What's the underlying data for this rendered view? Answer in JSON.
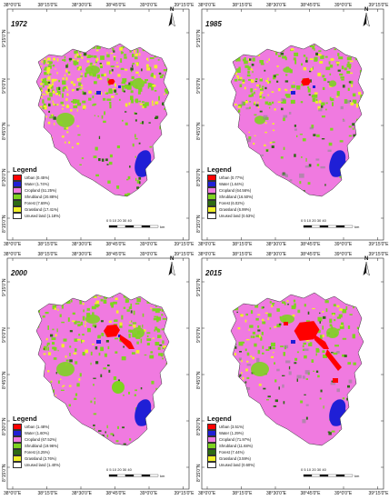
{
  "figure": {
    "top_ticks": [
      "38°0'0\"E",
      "38°15'0\"E",
      "38°30'0\"E",
      "38°45'0\"E",
      "39°0'0\"E",
      "39°15'0\"E"
    ],
    "bottom_ticks": [
      "38°0'0\"E",
      "38°15'0\"E",
      "38°30'0\"E",
      "38°45'0\"E",
      "39°0'0\"E",
      "39°15'0\"E"
    ],
    "left_ticks": [
      "9°15'0\"N",
      "9°0'0\"N",
      "8°45'0\"N",
      "8°30'0\"N",
      "8°15'0\"N"
    ],
    "north_label": "N",
    "legend_title": "Legend",
    "scale": {
      "ticks": [
        "0",
        "5",
        "10",
        "20",
        "30",
        "40"
      ],
      "unit": "km"
    }
  },
  "panels": [
    {
      "year": "1972",
      "legend": [
        {
          "label": "Urban (0.45%)",
          "color": "#ff0000"
        },
        {
          "label": "Water (1.74%)",
          "color": "#1f1fd6"
        },
        {
          "label": "Cropland (51.25%)",
          "color": "#f07ae0"
        },
        {
          "label": "Shrubland (20.88%)",
          "color": "#7ed321"
        },
        {
          "label": "Forest (7.69%)",
          "color": "#2f6b14"
        },
        {
          "label": "Grassland (17.41%)",
          "color": "#f0f028"
        },
        {
          "label": "Unused land (1.18%)",
          "color": "#ffffff"
        }
      ]
    },
    {
      "year": "1985",
      "legend": [
        {
          "label": "Urban (0.77%)",
          "color": "#ff0000"
        },
        {
          "label": "Water (1.64%)",
          "color": "#1f1fd6"
        },
        {
          "label": "Cropland (64.56%)",
          "color": "#f07ae0"
        },
        {
          "label": "Shrubland (16.50%)",
          "color": "#7ed321"
        },
        {
          "label": "Forest (6.02%)",
          "color": "#2f6b14"
        },
        {
          "label": "Grassland (6.99%)",
          "color": "#f0f028"
        },
        {
          "label": "Unused land (0.53%)",
          "color": "#ffffff"
        }
      ]
    },
    {
      "year": "2000",
      "legend": [
        {
          "label": "Urban (1.48%)",
          "color": "#ff0000"
        },
        {
          "label": "Water (1.60%)",
          "color": "#1f1fd6"
        },
        {
          "label": "Cropland (67.52%)",
          "color": "#f07ae0"
        },
        {
          "label": "Shrubland (19.96%)",
          "color": "#7ed321"
        },
        {
          "label": "Forest (4.25%)",
          "color": "#2f6b14"
        },
        {
          "label": "Grassland (3.76%)",
          "color": "#f0f028"
        },
        {
          "label": "Unused land (1.40%)",
          "color": "#ffffff"
        }
      ]
    },
    {
      "year": "2015",
      "legend": [
        {
          "label": "Urban (3.51%)",
          "color": "#ff0000"
        },
        {
          "label": "Water (1.29%)",
          "color": "#1f1fd6"
        },
        {
          "label": "Cropland (71.97%)",
          "color": "#f07ae0"
        },
        {
          "label": "Shrubland (11.68%)",
          "color": "#7ed321"
        },
        {
          "label": "Forest (7.44%)",
          "color": "#2f6b14"
        },
        {
          "label": "Grassland (3.59%)",
          "color": "#f0f028"
        },
        {
          "label": "Unused land (0.60%)",
          "color": "#ffffff"
        }
      ]
    }
  ]
}
